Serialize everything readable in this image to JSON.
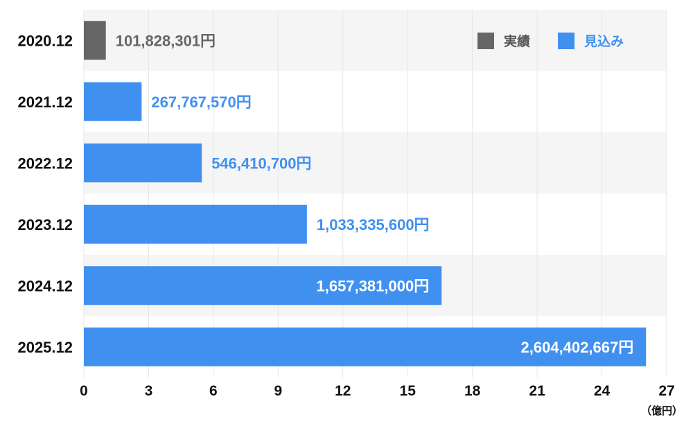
{
  "chart_data": {
    "type": "bar",
    "orientation": "horizontal",
    "categories": [
      "2020.12",
      "2021.12",
      "2022.12",
      "2023.12",
      "2024.12",
      "2025.12"
    ],
    "values": [
      1.01828301,
      2.6776757,
      5.464107,
      10.333356,
      16.57381,
      26.04402667
    ],
    "value_labels": [
      "101,828,301円",
      "267,767,570円",
      "546,410,700円",
      "1,033,335,600円",
      "1,657,381,000円",
      "2,604,402,667円"
    ],
    "bar_series": [
      "実績",
      "見込み",
      "見込み",
      "見込み",
      "見込み",
      "見込み"
    ],
    "label_position": [
      "outside",
      "outside",
      "outside",
      "outside",
      "inside",
      "inside"
    ],
    "legend": [
      {
        "name": "実績",
        "color": "#666666"
      },
      {
        "name": "見込み",
        "color": "#4090f0"
      }
    ],
    "legend_placement": "top-right",
    "xlim": [
      0,
      27
    ],
    "xticks": [
      0,
      3,
      6,
      9,
      12,
      15,
      18,
      21,
      24,
      27
    ],
    "xunit": "（億円）",
    "grid": true,
    "row_banding": true,
    "colors": {
      "actual": "#666666",
      "forecast": "#4090f0",
      "band": "#f5f5f5",
      "grid": "#e6e6e6"
    }
  }
}
